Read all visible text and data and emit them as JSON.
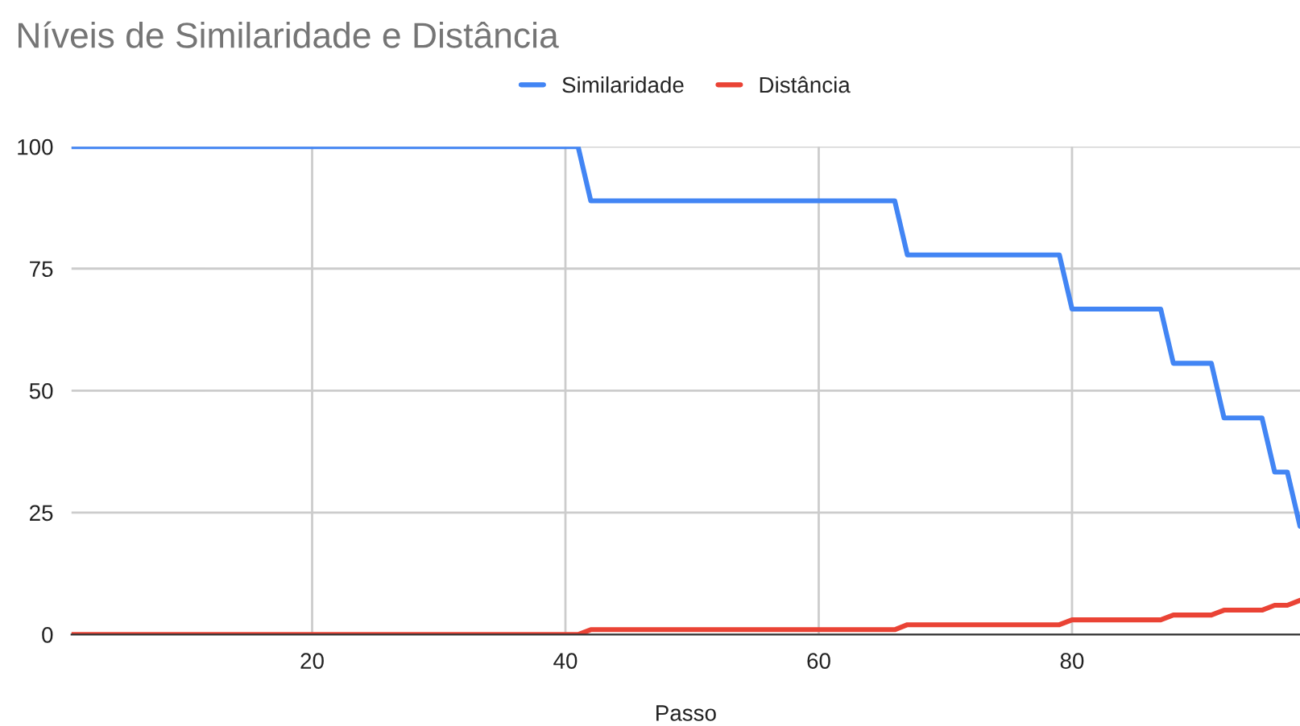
{
  "chart_data": {
    "type": "line",
    "title": "Níveis de Similaridade e Distância",
    "xlabel": "Passo",
    "series": [
      {
        "name": "Similaridade",
        "color": "#4285f4",
        "x": [
          1,
          41,
          42,
          66,
          67,
          79,
          80,
          87,
          88,
          91,
          92,
          95,
          96,
          97,
          98
        ],
        "values": [
          100,
          100,
          88.9,
          88.9,
          77.8,
          77.8,
          66.7,
          66.7,
          55.6,
          55.6,
          44.4,
          44.4,
          33.3,
          33.3,
          22.2
        ]
      },
      {
        "name": "Distância",
        "color": "#ea4335",
        "x": [
          1,
          41,
          42,
          66,
          67,
          79,
          80,
          87,
          88,
          91,
          92,
          95,
          96,
          97,
          98
        ],
        "values": [
          0,
          0,
          1,
          1,
          2,
          2,
          3,
          3,
          4,
          4,
          5,
          5,
          6,
          6,
          7
        ]
      }
    ],
    "xlim": [
      1,
      98
    ],
    "xticks": [
      20,
      40,
      60,
      80
    ],
    "ylim": [
      0,
      100
    ],
    "yticks": [
      0,
      25,
      50,
      75,
      100
    ],
    "grid": true,
    "legend": "top",
    "marker": "none",
    "line_style": "solid"
  }
}
